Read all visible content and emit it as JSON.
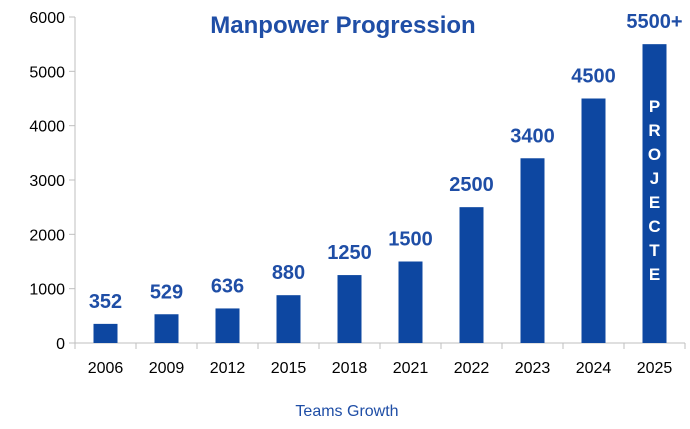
{
  "chart_data": {
    "type": "bar",
    "title": "Manpower Progression",
    "xlabel": "Teams Growth",
    "ylabel": "",
    "categories": [
      "2006",
      "2009",
      "2012",
      "2015",
      "2018",
      "2021",
      "2022",
      "2023",
      "2024",
      "2025"
    ],
    "values": [
      352,
      529,
      636,
      880,
      1250,
      1500,
      2500,
      3400,
      4500,
      5500
    ],
    "data_labels": [
      "352",
      "529",
      "636",
      "880",
      "1250",
      "1500",
      "2500",
      "3400",
      "4500",
      "5500+"
    ],
    "bar_annotation": {
      "category": "2025",
      "text": "PROJECTE"
    },
    "ylim": [
      0,
      6000
    ],
    "yticks": [
      0,
      1000,
      2000,
      3000,
      4000,
      5000,
      6000
    ],
    "grid": false,
    "legend": "none",
    "colors": {
      "bar": "#0d47a1",
      "label": "#1f4ea6",
      "title": "#1f4ea6",
      "axis": "#bfbfbf",
      "tick_text": "#000000",
      "xlabel_text": "#1f4ea6",
      "annotation_text": "#ffffff"
    }
  }
}
